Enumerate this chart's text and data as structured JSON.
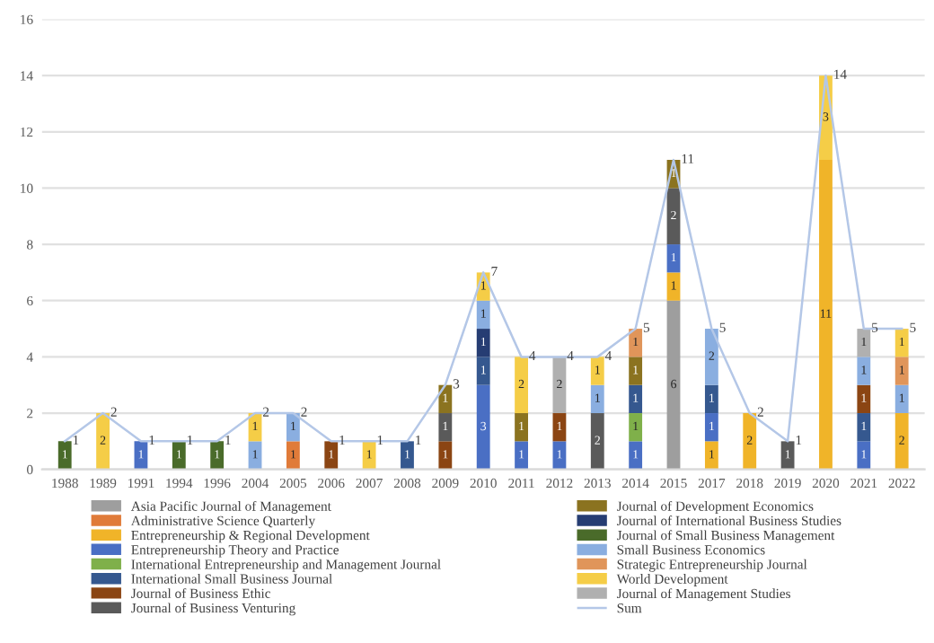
{
  "chart_data": {
    "type": "bar",
    "stacked": true,
    "data_labels": true,
    "grid": "y",
    "legend": "bottom",
    "ylim": [
      0,
      16
    ],
    "yticks": [
      0,
      2,
      4,
      6,
      8,
      10,
      12,
      14,
      16
    ],
    "categories": [
      "1988",
      "1989",
      "1991",
      "1994",
      "1996",
      "2004",
      "2005",
      "2006",
      "2007",
      "2008",
      "2009",
      "2010",
      "2011",
      "2012",
      "2013",
      "2014",
      "2015",
      "2017",
      "2018",
      "2019",
      "2020",
      "2021",
      "2022"
    ],
    "series": [
      {
        "name": "Asia Pacific Journal of Management",
        "color": "#9e9e9e",
        "values": [
          null,
          null,
          null,
          null,
          null,
          null,
          null,
          null,
          null,
          null,
          null,
          null,
          null,
          null,
          null,
          null,
          6,
          null,
          null,
          null,
          null,
          null,
          null
        ]
      },
      {
        "name": "Administrative Science Quarterly",
        "color": "#e07b39",
        "values": [
          null,
          null,
          null,
          null,
          null,
          null,
          1,
          null,
          null,
          null,
          null,
          null,
          null,
          null,
          null,
          null,
          null,
          null,
          null,
          null,
          null,
          null,
          null
        ]
      },
      {
        "name": "Entrepreneurship & Regional Development",
        "color": "#f0b429",
        "values": [
          null,
          null,
          null,
          null,
          null,
          null,
          null,
          null,
          null,
          null,
          null,
          null,
          null,
          null,
          null,
          null,
          1,
          1,
          2,
          null,
          11,
          null,
          2
        ]
      },
      {
        "name": "Entrepreneurship Theory and Practice",
        "color": "#4a6fc4",
        "values": [
          null,
          null,
          1,
          null,
          null,
          null,
          null,
          null,
          null,
          null,
          null,
          3,
          1,
          1,
          null,
          1,
          1,
          1,
          null,
          null,
          null,
          1,
          null
        ]
      },
      {
        "name": "International Entrepreneurship and Management Journal",
        "color": "#7fb04a",
        "values": [
          null,
          null,
          null,
          null,
          null,
          null,
          null,
          null,
          null,
          null,
          null,
          null,
          null,
          null,
          null,
          1,
          null,
          null,
          null,
          null,
          null,
          null,
          null
        ]
      },
      {
        "name": "International Small Business Journal",
        "color": "#35588f",
        "values": [
          null,
          null,
          null,
          null,
          null,
          null,
          null,
          null,
          null,
          1,
          null,
          1,
          null,
          null,
          null,
          1,
          null,
          1,
          null,
          null,
          null,
          1,
          null
        ]
      },
      {
        "name": "Journal of Business Ethic",
        "color": "#8b4513",
        "values": [
          null,
          null,
          null,
          null,
          null,
          null,
          null,
          1,
          null,
          null,
          1,
          null,
          null,
          1,
          null,
          null,
          null,
          null,
          null,
          null,
          null,
          1,
          null
        ]
      },
      {
        "name": "Journal of Business Venturing",
        "color": "#5a5a5a",
        "values": [
          null,
          null,
          null,
          null,
          null,
          null,
          null,
          null,
          null,
          null,
          1,
          null,
          null,
          null,
          2,
          null,
          2,
          null,
          null,
          1,
          null,
          null,
          null
        ]
      },
      {
        "name": "Journal of Development Economics",
        "color": "#8b7320",
        "values": [
          null,
          null,
          null,
          null,
          null,
          null,
          null,
          null,
          null,
          null,
          1,
          null,
          1,
          null,
          null,
          1,
          1,
          null,
          null,
          null,
          null,
          null,
          null
        ]
      },
      {
        "name": "Journal of International Business Studies",
        "color": "#263d73",
        "values": [
          null,
          null,
          null,
          null,
          null,
          null,
          null,
          null,
          null,
          null,
          null,
          1,
          null,
          null,
          null,
          null,
          null,
          null,
          null,
          null,
          null,
          null,
          null
        ]
      },
      {
        "name": "Journal of Small Business Management",
        "color": "#4a6b2a",
        "values": [
          1,
          null,
          null,
          1,
          1,
          null,
          null,
          null,
          null,
          null,
          null,
          null,
          null,
          null,
          null,
          null,
          null,
          null,
          null,
          null,
          null,
          null,
          null
        ]
      },
      {
        "name": "Small Business Economics",
        "color": "#8aaee0",
        "values": [
          null,
          null,
          null,
          null,
          null,
          1,
          1,
          null,
          null,
          null,
          null,
          1,
          null,
          null,
          1,
          null,
          null,
          2,
          null,
          null,
          null,
          1,
          1
        ]
      },
      {
        "name": "Strategic Entrepreneurship Journal",
        "color": "#e0955a",
        "values": [
          null,
          null,
          null,
          null,
          null,
          null,
          null,
          null,
          null,
          null,
          null,
          null,
          null,
          null,
          null,
          1,
          null,
          null,
          null,
          null,
          null,
          null,
          1
        ]
      },
      {
        "name": "World Development",
        "color": "#f5cd47",
        "values": [
          null,
          2,
          null,
          null,
          null,
          1,
          null,
          null,
          1,
          null,
          null,
          1,
          2,
          null,
          1,
          null,
          null,
          null,
          null,
          null,
          3,
          null,
          1
        ]
      },
      {
        "name": "Journal of Management Studies",
        "color": "#b0b0b0",
        "values": [
          null,
          null,
          null,
          null,
          null,
          null,
          null,
          null,
          null,
          null,
          null,
          null,
          null,
          2,
          null,
          null,
          null,
          null,
          null,
          null,
          null,
          1,
          null
        ]
      },
      {
        "name": "Sum",
        "type": "line",
        "color": "#b4c7e7",
        "values": [
          1,
          2,
          1,
          1,
          1,
          2,
          2,
          1,
          1,
          1,
          3,
          7,
          4,
          4,
          4,
          5,
          11,
          5,
          2,
          1,
          14,
          5,
          5
        ]
      }
    ]
  }
}
